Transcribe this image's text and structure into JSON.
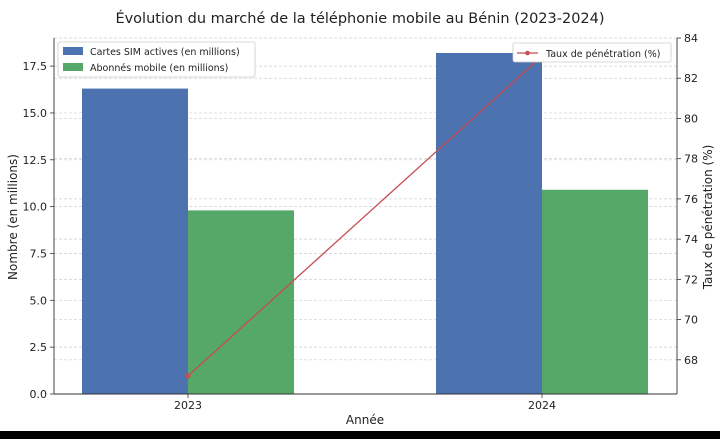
{
  "chart_data": {
    "type": "bar",
    "title": "Évolution du marché de la téléphonie mobile au Bénin (2023-2024)",
    "xlabel": "Année",
    "ylabel": "Nombre (en millions)",
    "y2label": "Taux de pénétration (%)",
    "categories": [
      "2023",
      "2024"
    ],
    "series": [
      {
        "name": "Cartes SIM actives (en millions)",
        "type": "bar",
        "axis": "left",
        "values": [
          16.3,
          18.2
        ],
        "color": "#4c72b0"
      },
      {
        "name": "Abonnés mobile (en millions)",
        "type": "bar",
        "axis": "left",
        "values": [
          9.8,
          10.9
        ],
        "color": "#55a868"
      },
      {
        "name": "Taux de pénétration (%)",
        "type": "line",
        "axis": "right",
        "values": [
          67.2,
          83.1
        ],
        "color": "#c44e52"
      }
    ],
    "ylim": [
      0,
      19.0
    ],
    "y2lim": [
      66.3,
      84.0
    ],
    "yticks": [
      "0.0",
      "2.5",
      "5.0",
      "7.5",
      "10.0",
      "12.5",
      "15.0",
      "17.5"
    ],
    "y2ticks": [
      "68",
      "70",
      "72",
      "74",
      "76",
      "78",
      "80",
      "82",
      "84"
    ],
    "grid": true,
    "legend_left": "upper-left",
    "legend_right": "upper-right"
  }
}
